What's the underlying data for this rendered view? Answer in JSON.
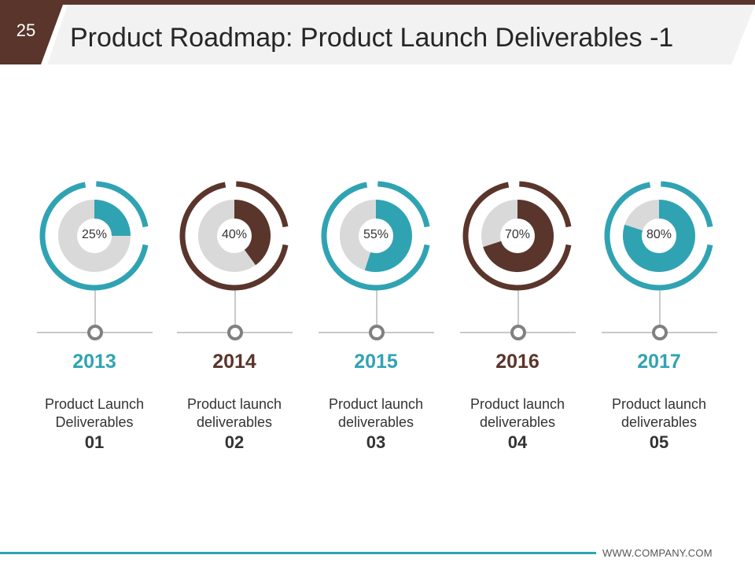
{
  "slide": {
    "number": "25",
    "title": "Product Roadmap: Product Launch Deliverables -1",
    "footer": "WWW.COMPANY.COM"
  },
  "colors": {
    "teal": "#30a3b3",
    "brown": "#5a352b",
    "gray": "#d9d9d9",
    "node": "#808080"
  },
  "milestones": [
    {
      "percent": 25,
      "percent_label": "25%",
      "year": "2013",
      "desc_line1": "Product Launch",
      "desc_line2": "Deliverables",
      "num": "01",
      "color": "teal"
    },
    {
      "percent": 40,
      "percent_label": "40%",
      "year": "2014",
      "desc_line1": "Product launch",
      "desc_line2": "deliverables",
      "num": "02",
      "color": "brown"
    },
    {
      "percent": 55,
      "percent_label": "55%",
      "year": "2015",
      "desc_line1": "Product launch",
      "desc_line2": "deliverables",
      "num": "03",
      "color": "teal"
    },
    {
      "percent": 70,
      "percent_label": "70%",
      "year": "2016",
      "desc_line1": "Product launch",
      "desc_line2": "deliverables",
      "num": "04",
      "color": "brown"
    },
    {
      "percent": 80,
      "percent_label": "80%",
      "year": "2017",
      "desc_line1": "Product launch",
      "desc_line2": "deliverables",
      "num": "05",
      "color": "teal"
    }
  ]
}
